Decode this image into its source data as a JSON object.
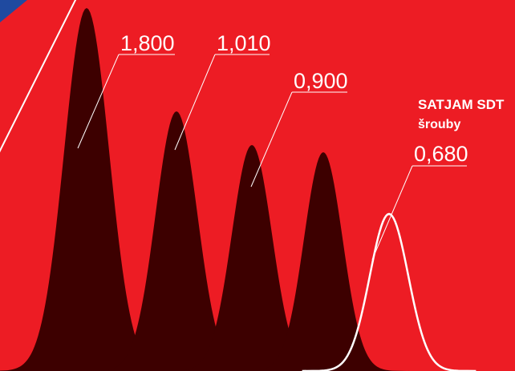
{
  "colors": {
    "background": "#ed1c24",
    "corner": "#1f4aa0",
    "peak_fill": "#3d0000",
    "highlight_stroke": "#ffffff",
    "text": "#ffffff"
  },
  "chart_data": {
    "type": "area",
    "title": "",
    "xlabel": "",
    "ylabel": "",
    "grid": false,
    "series": [
      {
        "label": "1,800",
        "value": 1.8,
        "style": "filled"
      },
      {
        "label": "1,010",
        "value": 1.01,
        "style": "filled"
      },
      {
        "label": "0,900",
        "value": 0.9,
        "style": "filled"
      },
      {
        "label": "",
        "value": null,
        "style": "filled"
      },
      {
        "label": "0,680",
        "value": 0.68,
        "style": "outline",
        "highlight": true
      }
    ],
    "highlight": {
      "title": "SATJAM SDT",
      "subtitle": "šrouby"
    }
  }
}
